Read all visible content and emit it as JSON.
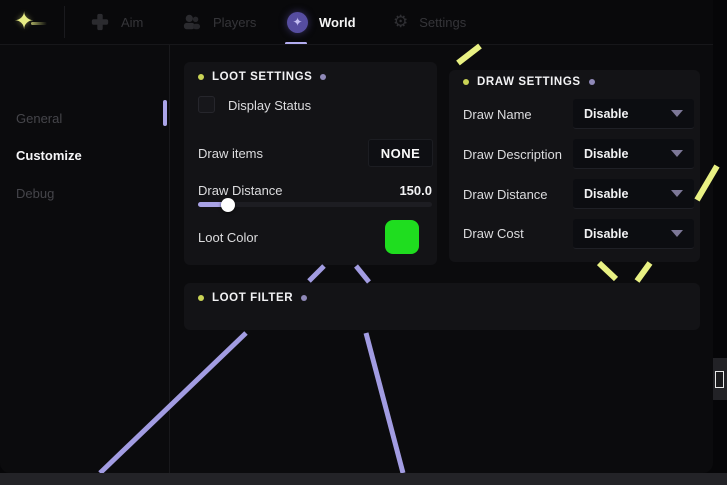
{
  "topbar": {
    "tabs": [
      {
        "label": "Aim",
        "icon": "crosshair-icon",
        "active": false
      },
      {
        "label": "Players",
        "icon": "players-icon",
        "active": false
      },
      {
        "label": "World",
        "icon": "globe-sparkle-icon",
        "active": true
      },
      {
        "label": "Settings",
        "icon": "gear-icon",
        "active": false
      }
    ]
  },
  "sidebar": {
    "items": [
      {
        "label": "General",
        "active": false
      },
      {
        "label": "Customize",
        "active": true
      },
      {
        "label": "Debug",
        "active": false
      }
    ]
  },
  "loot_settings": {
    "title": "LOOT SETTINGS",
    "display_status_label": "Display Status",
    "display_status_checked": false,
    "draw_items_label": "Draw items",
    "draw_items_value": "NONE",
    "draw_distance_label": "Draw Distance",
    "draw_distance_value": "150.0",
    "slider_percent": 13,
    "loot_color_label": "Loot Color",
    "loot_color_value": "#1fdd1f"
  },
  "draw_settings": {
    "title": "DRAW SETTINGS",
    "rows": [
      {
        "label": "Draw Name",
        "value": "Disable"
      },
      {
        "label": "Draw Description",
        "value": "Disable"
      },
      {
        "label": "Draw Distance",
        "value": "Disable"
      },
      {
        "label": "Draw Cost",
        "value": "Disable"
      }
    ]
  },
  "loot_filter": {
    "title": "LOOT FILTER"
  },
  "colors": {
    "accent_purple": "#a9a3e6",
    "beam_purple": "#a29ce2",
    "beam_yellow": "#e9f183",
    "loot_green": "#1fdd1f",
    "dot_yellow": "#c9d355",
    "dot_purple": "#8f89b8"
  }
}
